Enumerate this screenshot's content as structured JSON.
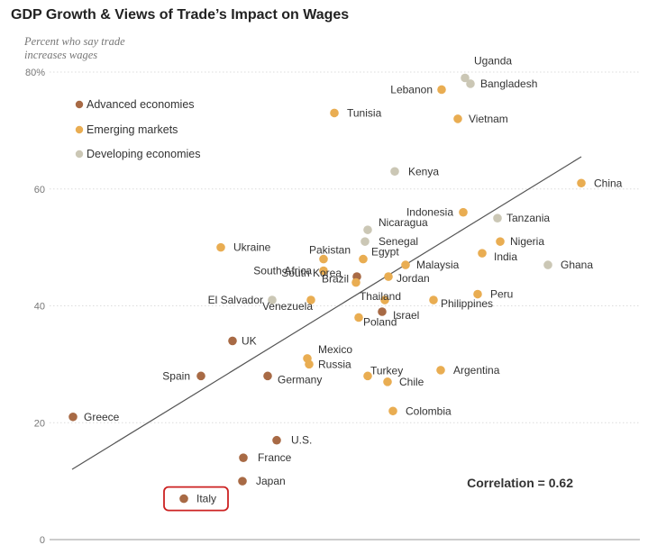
{
  "chart_data": {
    "type": "scatter",
    "title": "GDP Growth & Views of Trade’s Impact on Wages",
    "ylabel": "Percent who say trade increases wages",
    "y_ticks": [
      "0",
      "20",
      "40",
      "60",
      "80%"
    ],
    "ylim": [
      0,
      80
    ],
    "legend": [
      {
        "name": "Advanced economies",
        "color": "#a86a45"
      },
      {
        "name": "Emerging markets",
        "color": "#e9ad52"
      },
      {
        "name": "Developing economies",
        "color": "#cbc7b5"
      }
    ],
    "annotation": "Correlation = 0.62",
    "highlight": "Italy",
    "colors": {
      "advanced": "#a86a45",
      "emerging": "#e9ad52",
      "developing": "#cbc7b5",
      "trendline": "#555555",
      "highlight_box": "#cc2222"
    },
    "points": [
      {
        "name": "Uganda",
        "group": "developing",
        "y": 79
      },
      {
        "name": "Bangladesh",
        "group": "developing",
        "y": 78
      },
      {
        "name": "Lebanon",
        "group": "emerging",
        "y": 77
      },
      {
        "name": "Tunisia",
        "group": "emerging",
        "y": 73
      },
      {
        "name": "Vietnam",
        "group": "emerging",
        "y": 72
      },
      {
        "name": "Kenya",
        "group": "developing",
        "y": 63
      },
      {
        "name": "China",
        "group": "emerging",
        "y": 61
      },
      {
        "name": "Indonesia",
        "group": "emerging",
        "y": 56
      },
      {
        "name": "Tanzania",
        "group": "developing",
        "y": 55
      },
      {
        "name": "Nicaragua",
        "group": "developing",
        "y": 53
      },
      {
        "name": "Senegal",
        "group": "developing",
        "y": 51
      },
      {
        "name": "Ukraine",
        "group": "emerging",
        "y": 50
      },
      {
        "name": "Nigeria",
        "group": "emerging",
        "y": 51
      },
      {
        "name": "India",
        "group": "emerging",
        "y": 49
      },
      {
        "name": "Pakistan",
        "group": "emerging",
        "y": 48
      },
      {
        "name": "Egypt",
        "group": "emerging",
        "y": 48
      },
      {
        "name": "Ghana",
        "group": "developing",
        "y": 47
      },
      {
        "name": "Malaysia",
        "group": "emerging",
        "y": 47
      },
      {
        "name": "South Africa",
        "group": "emerging",
        "y": 46
      },
      {
        "name": "South Korea",
        "group": "advanced",
        "y": 45
      },
      {
        "name": "Jordan",
        "group": "emerging",
        "y": 45
      },
      {
        "name": "Brazil",
        "group": "emerging",
        "y": 44
      },
      {
        "name": "Peru",
        "group": "emerging",
        "y": 42
      },
      {
        "name": "El Salvador",
        "group": "developing",
        "y": 41
      },
      {
        "name": "Thailand",
        "group": "emerging",
        "y": 41
      },
      {
        "name": "Philippines",
        "group": "emerging",
        "y": 41
      },
      {
        "name": "Venezuela",
        "group": "emerging",
        "y": 41
      },
      {
        "name": "Israel",
        "group": "advanced",
        "y": 39
      },
      {
        "name": "Poland",
        "group": "emerging",
        "y": 38
      },
      {
        "name": "UK",
        "group": "advanced",
        "y": 34
      },
      {
        "name": "Mexico",
        "group": "emerging",
        "y": 31
      },
      {
        "name": "Russia",
        "group": "emerging",
        "y": 30
      },
      {
        "name": "Turkey",
        "group": "emerging",
        "y": 28
      },
      {
        "name": "Argentina",
        "group": "emerging",
        "y": 29
      },
      {
        "name": "Spain",
        "group": "advanced",
        "y": 28
      },
      {
        "name": "Germany",
        "group": "advanced",
        "y": 28
      },
      {
        "name": "Chile",
        "group": "emerging",
        "y": 27
      },
      {
        "name": "Colombia",
        "group": "emerging",
        "y": 22
      },
      {
        "name": "Greece",
        "group": "advanced",
        "y": 21
      },
      {
        "name": "U.S.",
        "group": "advanced",
        "y": 17
      },
      {
        "name": "France",
        "group": "advanced",
        "y": 14
      },
      {
        "name": "Japan",
        "group": "advanced",
        "y": 10
      },
      {
        "name": "Italy",
        "group": "advanced",
        "y": 7
      }
    ]
  }
}
